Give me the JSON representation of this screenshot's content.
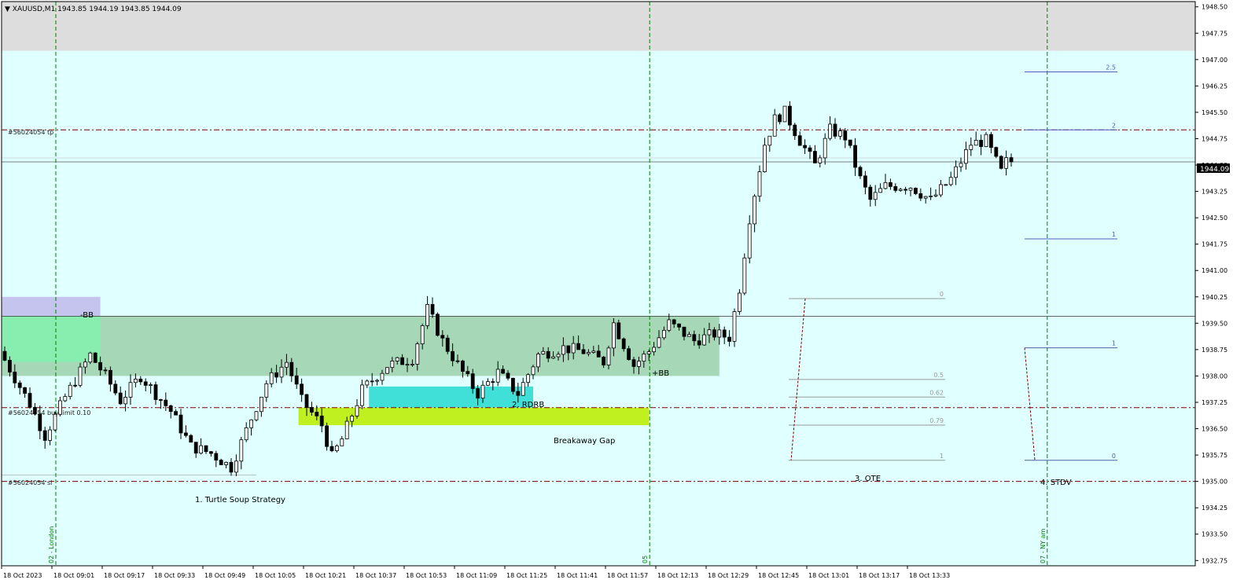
{
  "header": {
    "symbol": "XAUUSD,M1",
    "ohlc": "1943.85 1944.19 1943.85 1944.09"
  },
  "colors": {
    "background": "#e0ffff",
    "premium_zone": "#dddddd",
    "candle_body": "#000000",
    "session_line": "#008000",
    "order_line": "#800000",
    "bb_zone": "#a6d8b8",
    "bb_neg": "#c4c4ee",
    "bb_top": "#88eeb0",
    "rdrb": "#40e0d8",
    "gap": "#c0f020",
    "fib_gray": "#999999",
    "fib_blue": "#5060c0"
  },
  "chart_data": {
    "type": "candlestick",
    "symbol": "XAUUSD",
    "timeframe": "M1",
    "current_price": "1944.09",
    "y_range": [
      1932.6,
      1948.65
    ],
    "x_range_labels": [
      "18 Oct 2023",
      "18 Oct 09:01",
      "18 Oct 09:17",
      "18 Oct 09:33",
      "18 Oct 09:49",
      "18 Oct 10:05",
      "18 Oct 10:21",
      "18 Oct 10:37",
      "18 Oct 10:53",
      "18 Oct 11:09",
      "18 Oct 11:25",
      "18 Oct 11:41",
      "18 Oct 11:57",
      "18 Oct 12:13",
      "18 Oct 12:29",
      "18 Oct 12:45",
      "18 Oct 13:01",
      "18 Oct 13:17",
      "18 Oct 13:33"
    ],
    "y_ticks": [
      "1948.50",
      "1947.75",
      "1947.00",
      "1946.25",
      "1945.50",
      "1944.75",
      "1944.00",
      "1943.25",
      "1942.50",
      "1941.75",
      "1941.00",
      "1940.25",
      "1939.50",
      "1938.75",
      "1938.00",
      "1937.25",
      "1936.50",
      "1935.75",
      "1935.00",
      "1934.25",
      "1933.50",
      "1932.75"
    ],
    "price_path": [
      {
        "bar": 0,
        "price": 1938.7
      },
      {
        "bar": 6,
        "price": 1937.2
      },
      {
        "bar": 9,
        "price": 1936.3
      },
      {
        "bar": 13,
        "price": 1937.4
      },
      {
        "bar": 18,
        "price": 1938.6
      },
      {
        "bar": 21,
        "price": 1938.0
      },
      {
        "bar": 24,
        "price": 1937.3
      },
      {
        "bar": 28,
        "price": 1938.0
      },
      {
        "bar": 34,
        "price": 1937.0
      },
      {
        "bar": 38,
        "price": 1936.0
      },
      {
        "bar": 42,
        "price": 1935.8
      },
      {
        "bar": 46,
        "price": 1935.4
      },
      {
        "bar": 50,
        "price": 1936.8
      },
      {
        "bar": 53,
        "price": 1937.8
      },
      {
        "bar": 57,
        "price": 1938.4
      },
      {
        "bar": 60,
        "price": 1937.3
      },
      {
        "bar": 64,
        "price": 1936.6
      },
      {
        "bar": 66,
        "price": 1935.7
      },
      {
        "bar": 68,
        "price": 1936.2
      },
      {
        "bar": 72,
        "price": 1937.6
      },
      {
        "bar": 77,
        "price": 1938.3
      },
      {
        "bar": 82,
        "price": 1938.5
      },
      {
        "bar": 85,
        "price": 1939.9
      },
      {
        "bar": 88,
        "price": 1939.0
      },
      {
        "bar": 92,
        "price": 1938.1
      },
      {
        "bar": 95,
        "price": 1937.5
      },
      {
        "bar": 99,
        "price": 1938.1
      },
      {
        "bar": 103,
        "price": 1937.5
      },
      {
        "bar": 107,
        "price": 1938.6
      },
      {
        "bar": 112,
        "price": 1938.8
      },
      {
        "bar": 116,
        "price": 1938.7
      },
      {
        "bar": 120,
        "price": 1938.4
      },
      {
        "bar": 122,
        "price": 1939.5
      },
      {
        "bar": 126,
        "price": 1938.3
      },
      {
        "bar": 129,
        "price": 1938.7
      },
      {
        "bar": 133,
        "price": 1939.5
      },
      {
        "bar": 138,
        "price": 1939.0
      },
      {
        "bar": 142,
        "price": 1939.2
      },
      {
        "bar": 145,
        "price": 1939.1
      },
      {
        "bar": 147,
        "price": 1940.5
      },
      {
        "bar": 149,
        "price": 1942.5
      },
      {
        "bar": 152,
        "price": 1944.6
      },
      {
        "bar": 154,
        "price": 1945.3
      },
      {
        "bar": 156,
        "price": 1945.5
      },
      {
        "bar": 159,
        "price": 1944.7
      },
      {
        "bar": 162,
        "price": 1944.0
      },
      {
        "bar": 165,
        "price": 1945.0
      },
      {
        "bar": 168,
        "price": 1944.8
      },
      {
        "bar": 171,
        "price": 1943.6
      },
      {
        "bar": 173,
        "price": 1943.0
      },
      {
        "bar": 176,
        "price": 1943.4
      },
      {
        "bar": 181,
        "price": 1943.4
      },
      {
        "bar": 185,
        "price": 1943.0
      },
      {
        "bar": 189,
        "price": 1943.6
      },
      {
        "bar": 193,
        "price": 1944.6
      },
      {
        "bar": 196,
        "price": 1944.7
      },
      {
        "bar": 199,
        "price": 1943.8
      },
      {
        "bar": 200,
        "price": 1944.09
      }
    ],
    "levels": {
      "tp": 1945.0,
      "buy_limit": 1937.1,
      "sl": 1935.0,
      "bid": 1944.09
    },
    "zones": {
      "bb_pos": {
        "x_bar": [
          0,
          142
        ],
        "low": 1938.0,
        "high": 1939.7
      },
      "bb_neg": {
        "x_bar": [
          0,
          19
        ],
        "low": 1939.7,
        "high": 1940.25
      },
      "bb_top": {
        "x_bar": [
          0,
          19
        ],
        "low": 1938.4,
        "high": 1939.7
      },
      "rdrb": {
        "x_bar": [
          73,
          105
        ],
        "low": 1937.1,
        "high": 1937.7
      },
      "gap": {
        "x_bar": [
          59,
          128
        ],
        "low": 1936.6,
        "high": 1937.1
      },
      "premium": {
        "low": 1947.25,
        "high": 1948.65
      }
    },
    "session_markers": [
      {
        "bar": 10,
        "label": "02 - London"
      },
      {
        "bar": 128,
        "label": "05"
      },
      {
        "bar": 207,
        "label": "07 - NY am"
      }
    ],
    "ote_levels": [
      {
        "label": "0",
        "price": 1940.2
      },
      {
        "label": "0.5",
        "price": 1937.9
      },
      {
        "label": "0.62",
        "price": 1937.4
      },
      {
        "label": "0.79",
        "price": 1936.6
      },
      {
        "label": "1",
        "price": 1935.6
      }
    ],
    "stdv_levels": [
      {
        "label": "2.5",
        "price": 1946.65
      },
      {
        "label": "2",
        "price": 1945.0
      },
      {
        "label": "1",
        "price": 1941.9
      },
      {
        "label": "1",
        "price": 1938.8
      },
      {
        "label": "0",
        "price": 1935.6
      }
    ]
  },
  "annotations": {
    "neg_bb": "-BB",
    "pos_bb": "+BB",
    "rdrb": "2. RDRB",
    "breakaway_gap": "Breakaway Gap",
    "turtle_soup": "1. Turtle Soup Strategy",
    "ote": "3. OTE",
    "stdv": "4. STDV",
    "tp_label": "#56024054 tp",
    "buy_label": "#56024054 buy limit 0.10",
    "sl_label": "#56024054 sl"
  }
}
